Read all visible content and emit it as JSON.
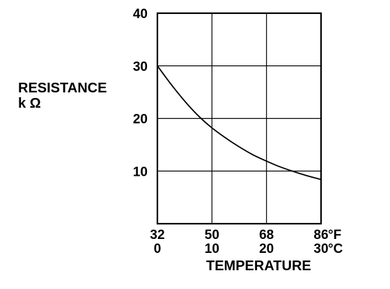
{
  "chart_data": {
    "type": "line",
    "title": "",
    "ylabel": "RESISTANCE",
    "ylabel_unit": "k Ω",
    "xlabel": "TEMPERATURE",
    "x_unit": "°C",
    "x_unit_secondary": "°F",
    "xlim": [
      0,
      30
    ],
    "ylim": [
      0,
      40
    ],
    "grid": true,
    "x_ticks_c": [
      "0",
      "10",
      "20",
      "30"
    ],
    "x_ticks_f": [
      "32",
      "50",
      "68",
      "86"
    ],
    "y_ticks": [
      "10",
      "20",
      "30",
      "40"
    ],
    "series": [
      {
        "x": [
          0,
          2.5,
          5,
          7.5,
          10,
          12.5,
          15,
          17.5,
          20,
          22.5,
          25,
          27.5,
          30
        ],
        "values": [
          30.0,
          26.5,
          23.3,
          20.5,
          18.2,
          16.3,
          14.6,
          13.1,
          11.9,
          10.8,
          9.9,
          9.1,
          8.4
        ]
      }
    ]
  }
}
